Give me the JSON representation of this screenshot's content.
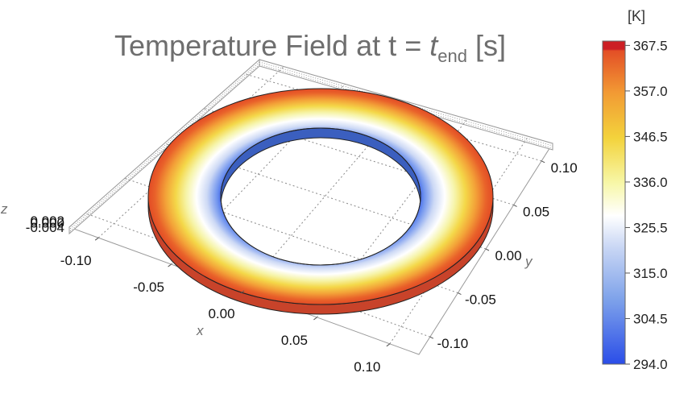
{
  "title": {
    "prefix": "Temperature Field at t = ",
    "t_symbol": "t",
    "t_subscript": "end",
    "suffix": " [s]"
  },
  "chart_data": {
    "type": "heatmap",
    "subtype": "3d annular disk, temperature colored by radius",
    "title": "Temperature Field at t = t_end [s]",
    "xlabel": "x",
    "ylabel": "y",
    "zlabel": "z",
    "x_ticks": [
      "-0.10",
      "-0.05",
      "0.00",
      "0.05",
      "0.10"
    ],
    "y_ticks": [
      "-0.10",
      "-0.05",
      "0.00",
      "0.05",
      "0.10"
    ],
    "z_ticks": [
      "0.002",
      "0.000",
      "-0.004"
    ],
    "xlim": [
      -0.12,
      0.12
    ],
    "ylim": [
      -0.12,
      0.12
    ],
    "zlim": [
      -0.004,
      0.002
    ],
    "grid": true,
    "colorbar": {
      "unit": "[K]",
      "min": 294.0,
      "max": 368.5,
      "ticks": [
        "294.0",
        "304.5",
        "315.0",
        "325.5",
        "336.0",
        "346.5",
        "357.0",
        "367.5"
      ],
      "tick_values": [
        294.0,
        304.5,
        315.0,
        325.5,
        336.0,
        346.5,
        357.0,
        367.5
      ],
      "colors": [
        "#2a4de8",
        "#7ea2ea",
        "#c8d6f4",
        "#ffffff",
        "#f7f7a8",
        "#f3d33c",
        "#f29a34",
        "#e34f26",
        "#cc1f24"
      ]
    }
  }
}
